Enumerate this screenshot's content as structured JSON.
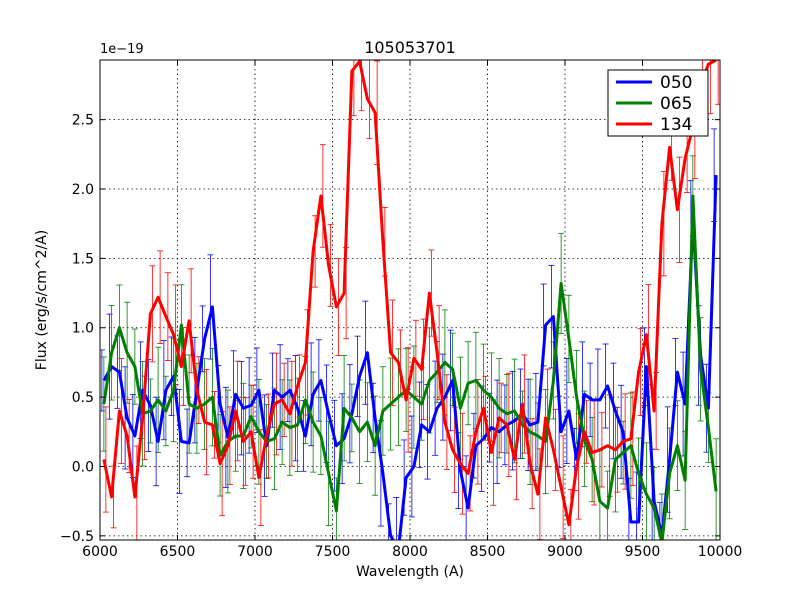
{
  "chart_data": {
    "type": "line",
    "title": "105053701",
    "xlabel": "Wavelength (A)",
    "ylabel": "Flux (erg/s/cm^2/A)",
    "offset_label": "1e−19",
    "xlim": [
      6000,
      10000
    ],
    "ylim": [
      -0.53,
      2.93
    ],
    "xticks": [
      6000,
      6500,
      7000,
      7500,
      8000,
      8500,
      9000,
      9500,
      10000
    ],
    "xtick_labels": [
      "6000",
      "6500",
      "7000",
      "7500",
      "8000",
      "8500",
      "9000",
      "9500",
      "10000"
    ],
    "yticks": [
      -0.5,
      0.0,
      0.5,
      1.0,
      1.5,
      2.0,
      2.5
    ],
    "ytick_labels": [
      "−0.5",
      "0.0",
      "0.5",
      "1.0",
      "1.5",
      "2.0",
      "2.5"
    ],
    "grid": true,
    "legend_position": "top-right",
    "x": [
      6025,
      6075,
      6125,
      6175,
      6225,
      6275,
      6325,
      6375,
      6425,
      6475,
      6525,
      6575,
      6625,
      6675,
      6725,
      6775,
      6825,
      6875,
      6925,
      6975,
      7025,
      7075,
      7125,
      7175,
      7225,
      7275,
      7325,
      7375,
      7425,
      7475,
      7525,
      7575,
      7625,
      7675,
      7725,
      7775,
      7825,
      7875,
      7925,
      7975,
      8025,
      8075,
      8125,
      8175,
      8225,
      8275,
      8325,
      8375,
      8425,
      8475,
      8525,
      8575,
      8625,
      8675,
      8725,
      8775,
      8825,
      8875,
      8925,
      8975,
      9025,
      9075,
      9125,
      9175,
      9225,
      9275,
      9325,
      9375,
      9425,
      9475,
      9525,
      9575,
      9625,
      9675,
      9725,
      9775,
      9825,
      9875,
      9925,
      9975
    ],
    "series": [
      {
        "name": "050",
        "color": "#0000ff",
        "values": [
          0.62,
          0.72,
          0.68,
          0.35,
          0.22,
          0.55,
          0.44,
          0.18,
          0.55,
          0.65,
          0.18,
          0.17,
          0.55,
          0.92,
          1.15,
          0.45,
          0.21,
          0.52,
          0.42,
          0.44,
          0.55,
          0.15,
          0.55,
          0.5,
          0.55,
          0.42,
          0.22,
          0.52,
          0.62,
          0.38,
          0.15,
          0.2,
          0.38,
          0.65,
          0.82,
          0.35,
          -0.05,
          -0.5,
          -0.6,
          -0.08,
          0.0,
          0.3,
          0.25,
          0.42,
          0.5,
          0.62,
          -0.03,
          -0.3,
          0.15,
          0.2,
          0.28,
          0.25,
          0.3,
          0.33,
          0.38,
          0.3,
          0.32,
          1.02,
          1.08,
          0.25,
          0.4,
          0.05,
          0.52,
          0.48,
          0.48,
          0.58,
          0.4,
          0.25,
          -0.4,
          -0.4,
          0.72,
          -0.25,
          -0.5,
          0.05,
          0.68,
          0.45,
          1.78,
          0.8,
          0.42,
          2.1
        ]
      },
      {
        "name": "065",
        "color": "#008000",
        "values": [
          0.45,
          0.82,
          1.0,
          0.82,
          0.72,
          0.38,
          0.4,
          0.48,
          0.4,
          0.55,
          1.02,
          0.45,
          0.42,
          0.45,
          0.5,
          0.08,
          0.18,
          0.22,
          0.22,
          0.36,
          0.25,
          0.18,
          0.2,
          0.32,
          0.28,
          0.3,
          0.48,
          0.32,
          0.22,
          -0.05,
          -0.32,
          0.42,
          0.35,
          0.25,
          0.32,
          0.15,
          0.4,
          0.45,
          0.5,
          0.55,
          0.5,
          0.45,
          0.62,
          0.68,
          0.75,
          0.7,
          0.42,
          0.6,
          0.62,
          0.55,
          0.5,
          0.42,
          0.38,
          0.4,
          0.3,
          0.25,
          0.22,
          0.18,
          0.62,
          1.32,
          0.92,
          0.5,
          0.2,
          0.05,
          -0.25,
          -0.3,
          0.05,
          0.1,
          0.15,
          -0.05,
          -0.2,
          -0.3,
          -0.55,
          -0.05,
          0.15,
          -0.1,
          1.95,
          0.7,
          0.28,
          -0.18
        ]
      },
      {
        "name": "134",
        "color": "#ff0000",
        "values": [
          0.05,
          -0.22,
          0.4,
          0.22,
          -0.22,
          0.35,
          1.1,
          1.22,
          1.08,
          0.95,
          0.72,
          1.05,
          0.55,
          0.32,
          0.3,
          0.02,
          0.15,
          0.4,
          0.18,
          0.25,
          -0.08,
          0.22,
          0.45,
          0.48,
          0.38,
          0.58,
          0.75,
          1.55,
          1.95,
          1.45,
          1.15,
          1.25,
          2.85,
          2.92,
          2.65,
          2.55,
          1.62,
          0.82,
          0.75,
          0.48,
          0.78,
          0.7,
          1.25,
          0.82,
          0.32,
          0.12,
          0.02,
          -0.05,
          0.25,
          0.42,
          0.1,
          0.35,
          0.3,
          0.05,
          0.45,
          0.02,
          -0.2,
          0.35,
          0.12,
          -0.15,
          -0.42,
          0.0,
          0.25,
          0.1,
          0.12,
          0.15,
          0.12,
          0.18,
          0.2,
          0.68,
          0.95,
          0.4,
          1.75,
          2.3,
          1.85,
          2.22,
          2.45,
          2.75,
          2.9,
          2.93
        ]
      }
    ]
  }
}
